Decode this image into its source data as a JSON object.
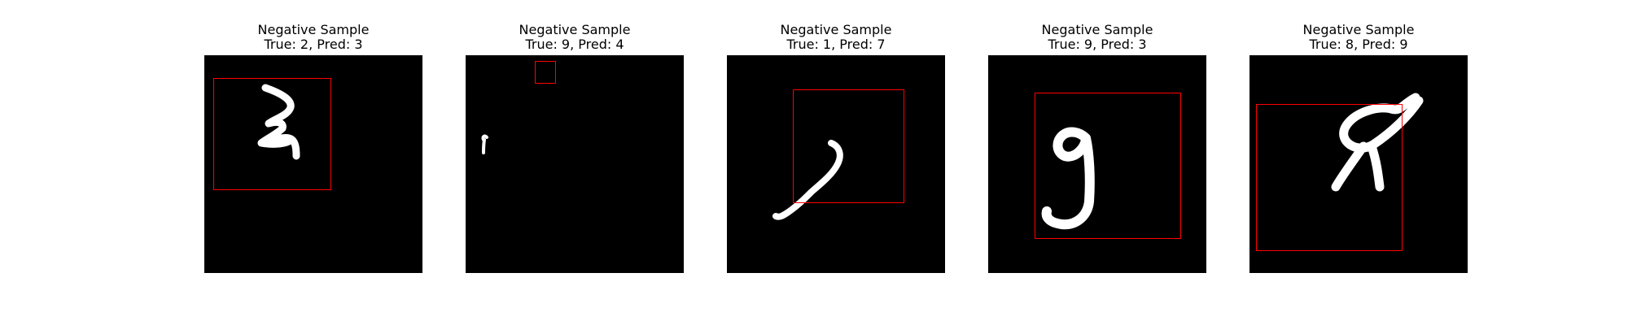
{
  "panels": [
    {
      "line1": "Negative Sample",
      "line2": "True: 2, Pred: 3",
      "digit": "2"
    },
    {
      "line1": "Negative Sample",
      "line2": "True: 9, Pred: 4",
      "digit": "9"
    },
    {
      "line1": "Negative Sample",
      "line2": "True: 1, Pred: 7",
      "digit": "1"
    },
    {
      "line1": "Negative Sample",
      "line2": "True: 9, Pred: 3",
      "digit": "9"
    },
    {
      "line1": "Negative Sample",
      "line2": "True: 8, Pred: 9",
      "digit": "8"
    }
  ],
  "colors": {
    "box": "#ff0000",
    "background": "#000000",
    "stroke": "#ffffff"
  }
}
